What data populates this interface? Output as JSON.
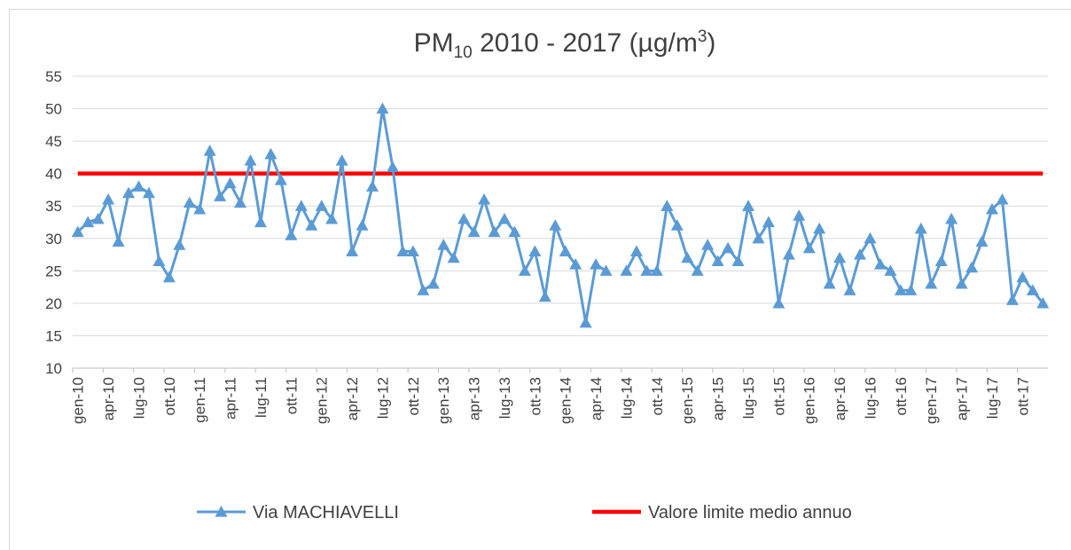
{
  "chart_data": {
    "type": "line",
    "title": [
      "PM",
      "10",
      " 2010 - 2017 (µg/m",
      "3",
      ")"
    ],
    "categories": [
      "gen-10",
      null,
      null,
      "apr-10",
      null,
      null,
      "lug-10",
      null,
      null,
      "ott-10",
      null,
      null,
      "gen-11",
      null,
      null,
      "apr-11",
      null,
      null,
      "lug-11",
      null,
      null,
      "ott-11",
      null,
      null,
      "gen-12",
      null,
      null,
      "apr-12",
      null,
      null,
      "lug-12",
      null,
      null,
      "ott-12",
      null,
      null,
      "gen-13",
      null,
      null,
      "apr-13",
      null,
      null,
      "lug-13",
      null,
      null,
      "ott-13",
      null,
      null,
      "gen-14",
      null,
      null,
      "apr-14",
      null,
      null,
      "lug-14",
      null,
      null,
      "ott-14",
      null,
      null,
      "gen-15",
      null,
      null,
      "apr-15",
      null,
      null,
      "lug-15",
      null,
      null,
      "ott-15",
      null,
      null,
      "gen-16",
      null,
      null,
      "apr-16",
      null,
      null,
      "lug-16",
      null,
      null,
      "ott-16",
      null,
      null,
      "gen-17",
      null,
      null,
      "apr-17",
      null,
      null,
      "lug-17",
      null,
      null,
      "ott-17",
      null,
      null
    ],
    "series": [
      {
        "name": "Via MACHIAVELLI",
        "color": "#5b9bd5",
        "marker": "triangle",
        "values": [
          31,
          32.5,
          33,
          36,
          29.5,
          37,
          38,
          37,
          26.5,
          24,
          29,
          35.5,
          34.5,
          43.5,
          36.5,
          38.5,
          35.5,
          42,
          32.5,
          43,
          39,
          30.5,
          35,
          32,
          35,
          33,
          42,
          28,
          32,
          38,
          50,
          41,
          28,
          28,
          22,
          23,
          29,
          27,
          33,
          31,
          36,
          31,
          33,
          31,
          25,
          28,
          21,
          32,
          28,
          26,
          17,
          26,
          25,
          null,
          25,
          28,
          25,
          25,
          35,
          32,
          27,
          25,
          29,
          26.5,
          28.5,
          26.5,
          35,
          30,
          32.5,
          20,
          27.5,
          33.5,
          28.5,
          31.5,
          23,
          27,
          22,
          27.5,
          30,
          26,
          25,
          22,
          22,
          31.5,
          23,
          26.5,
          33,
          23,
          25.5,
          29.5,
          34.5,
          36,
          20.5,
          24,
          22,
          20
        ]
      },
      {
        "name": "Valore limite medio annuo",
        "color": "#ff0000",
        "marker": null,
        "values": [
          40,
          40,
          40,
          40,
          40,
          40,
          40,
          40,
          40,
          40,
          40,
          40,
          40,
          40,
          40,
          40,
          40,
          40,
          40,
          40,
          40,
          40,
          40,
          40,
          40,
          40,
          40,
          40,
          40,
          40,
          40,
          40,
          40,
          40,
          40,
          40,
          40,
          40,
          40,
          40,
          40,
          40,
          40,
          40,
          40,
          40,
          40,
          40,
          40,
          40,
          40,
          40,
          40,
          40,
          40,
          40,
          40,
          40,
          40,
          40,
          40,
          40,
          40,
          40,
          40,
          40,
          40,
          40,
          40,
          40,
          40,
          40,
          40,
          40,
          40,
          40,
          40,
          40,
          40,
          40,
          40,
          40,
          40,
          40,
          40,
          40,
          40,
          40,
          40,
          40,
          40,
          40,
          40,
          40,
          40,
          40
        ]
      }
    ],
    "ylim": [
      10,
      55
    ],
    "yticks": [
      10,
      15,
      20,
      25,
      30,
      35,
      40,
      45,
      50,
      55
    ],
    "grid": true,
    "legend": "bottom"
  }
}
